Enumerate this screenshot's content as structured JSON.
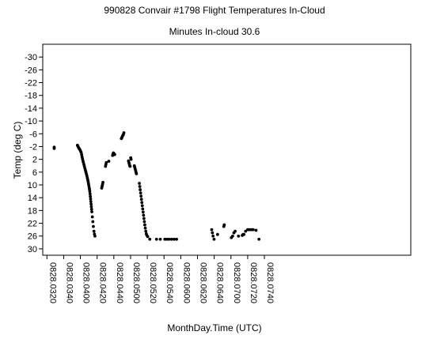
{
  "chart_data": {
    "type": "scatter",
    "title": "990828 Convair #1798 Flight Temperatures In-Cloud",
    "subtitle": "Minutes In-cloud 30.6",
    "xlabel": "MonthDay.Time (UTC)",
    "ylabel": "Temp (deg C)",
    "xlim": [
      315,
      755
    ],
    "ylim": [
      32,
      -34
    ],
    "y_reversed": true,
    "grid": false,
    "legend": "none",
    "marker_color": "#000000",
    "x_ticks": [
      {
        "value": 320,
        "label": "0828.0320"
      },
      {
        "value": 340,
        "label": "0828.0340"
      },
      {
        "value": 360,
        "label": "0828.0400"
      },
      {
        "value": 380,
        "label": "0828.0420"
      },
      {
        "value": 400,
        "label": "0828.0440"
      },
      {
        "value": 420,
        "label": "0828.0500"
      },
      {
        "value": 440,
        "label": "0828.0520"
      },
      {
        "value": 460,
        "label": "0828.0540"
      },
      {
        "value": 480,
        "label": "0828.0600"
      },
      {
        "value": 500,
        "label": "0828.0620"
      },
      {
        "value": 520,
        "label": "0828.0640"
      },
      {
        "value": 540,
        "label": "0828.0700"
      },
      {
        "value": 560,
        "label": "0828.0720"
      },
      {
        "value": 580,
        "label": "0828.0740"
      }
    ],
    "y_ticks": [
      {
        "value": -30,
        "label": "-30"
      },
      {
        "value": -26,
        "label": "-26"
      },
      {
        "value": -22,
        "label": "-22"
      },
      {
        "value": -18,
        "label": "-18"
      },
      {
        "value": -14,
        "label": "-14"
      },
      {
        "value": -10,
        "label": "-10"
      },
      {
        "value": -6,
        "label": "-6"
      },
      {
        "value": -2,
        "label": "-2"
      },
      {
        "value": 2,
        "label": "2"
      },
      {
        "value": 6,
        "label": "6"
      },
      {
        "value": 10,
        "label": "10"
      },
      {
        "value": 14,
        "label": "14"
      },
      {
        "value": 18,
        "label": "18"
      },
      {
        "value": 22,
        "label": "22"
      },
      {
        "value": 26,
        "label": "26"
      },
      {
        "value": 30,
        "label": "30"
      }
    ],
    "x_minutes_note_free": true,
    "points": [
      [
        328.7,
        -1.8
      ],
      [
        328.7,
        -1.4
      ],
      [
        356.5,
        -2.4
      ],
      [
        357.2,
        -2.0
      ],
      [
        358.0,
        -1.6
      ],
      [
        358.7,
        -1.3
      ],
      [
        359.5,
        -1.0
      ],
      [
        360.2,
        -0.6
      ],
      [
        360.9,
        -0.2
      ],
      [
        361.5,
        0.5
      ],
      [
        362.0,
        1.2
      ],
      [
        362.5,
        1.8
      ],
      [
        363.0,
        2.4
      ],
      [
        363.6,
        3.0
      ],
      [
        364.2,
        3.6
      ],
      [
        364.8,
        4.2
      ],
      [
        365.4,
        4.8
      ],
      [
        366.0,
        5.4
      ],
      [
        366.6,
        6.0
      ],
      [
        367.2,
        6.6
      ],
      [
        367.8,
        7.2
      ],
      [
        368.3,
        7.8
      ],
      [
        368.8,
        8.4
      ],
      [
        369.3,
        9.0
      ],
      [
        369.7,
        9.6
      ],
      [
        370.1,
        10.2
      ],
      [
        370.5,
        10.8
      ],
      [
        370.9,
        11.4
      ],
      [
        371.2,
        12.0
      ],
      [
        371.6,
        12.8
      ],
      [
        371.9,
        13.6
      ],
      [
        372.2,
        14.4
      ],
      [
        372.5,
        15.2
      ],
      [
        372.8,
        16.0
      ],
      [
        373.1,
        16.8
      ],
      [
        373.4,
        17.6
      ],
      [
        373.7,
        18.4
      ],
      [
        374.3,
        20.0
      ],
      [
        374.9,
        21.5
      ],
      [
        375.5,
        23.0
      ],
      [
        376.2,
        24.5
      ],
      [
        376.8,
        25.4
      ],
      [
        377.4,
        26.0
      ],
      [
        385.5,
        11.0
      ],
      [
        386.0,
        10.4
      ],
      [
        386.5,
        9.8
      ],
      [
        387.0,
        9.2
      ],
      [
        390.0,
        4.2
      ],
      [
        390.5,
        3.6
      ],
      [
        391.0,
        3.0
      ],
      [
        394.0,
        2.6
      ],
      [
        398.5,
        0.8
      ],
      [
        399.0,
        0.3
      ],
      [
        399.5,
        0.0
      ],
      [
        400.0,
        0.2
      ],
      [
        400.5,
        0.4
      ],
      [
        401.0,
        0.5
      ],
      [
        409.0,
        -4.5
      ],
      [
        409.6,
        -4.8
      ],
      [
        410.2,
        -5.2
      ],
      [
        410.8,
        -5.5
      ],
      [
        411.4,
        -5.8
      ],
      [
        412.0,
        -6.3
      ],
      [
        417.5,
        2.5
      ],
      [
        418.0,
        3.0
      ],
      [
        418.5,
        3.5
      ],
      [
        419.0,
        4.0
      ],
      [
        419.5,
        4.2
      ],
      [
        420.2,
        1.5
      ],
      [
        420.6,
        2.0
      ],
      [
        424.5,
        4.0
      ],
      [
        425.0,
        4.5
      ],
      [
        425.5,
        5.0
      ],
      [
        426.0,
        5.5
      ],
      [
        426.5,
        6.0
      ],
      [
        427.0,
        6.5
      ],
      [
        430.5,
        9.5
      ],
      [
        431.0,
        10.5
      ],
      [
        431.5,
        11.5
      ],
      [
        432.0,
        12.5
      ],
      [
        432.5,
        13.5
      ],
      [
        433.0,
        14.5
      ],
      [
        433.5,
        15.5
      ],
      [
        434.0,
        16.5
      ],
      [
        434.5,
        17.5
      ],
      [
        435.0,
        18.5
      ],
      [
        435.5,
        19.5
      ],
      [
        436.0,
        20.5
      ],
      [
        436.5,
        21.5
      ],
      [
        437.0,
        22.5
      ],
      [
        437.6,
        23.5
      ],
      [
        438.2,
        24.5
      ],
      [
        438.8,
        25.3
      ],
      [
        439.5,
        25.8
      ],
      [
        440.5,
        26.2
      ],
      [
        443.0,
        27.0
      ],
      [
        451.0,
        27.0
      ],
      [
        455.5,
        27.0
      ],
      [
        461.0,
        27.0
      ],
      [
        463.5,
        27.0
      ],
      [
        466.0,
        27.0
      ],
      [
        469.0,
        27.0
      ],
      [
        472.0,
        27.0
      ],
      [
        475.0,
        27.0
      ],
      [
        517.0,
        24.0
      ],
      [
        517.8,
        25.0
      ],
      [
        518.6,
        26.0
      ],
      [
        519.8,
        27.0
      ],
      [
        524.0,
        25.5
      ],
      [
        531.5,
        23.0
      ],
      [
        532.0,
        22.5
      ],
      [
        540.5,
        26.5
      ],
      [
        542.0,
        26.0
      ],
      [
        543.5,
        25.0
      ],
      [
        545.0,
        24.5
      ],
      [
        549.0,
        26.0
      ],
      [
        553.5,
        25.8
      ],
      [
        554.5,
        25.5
      ],
      [
        555.5,
        25.5
      ],
      [
        557.5,
        24.5
      ],
      [
        560.0,
        24.0
      ],
      [
        561.5,
        24.0
      ],
      [
        563.5,
        24.0
      ],
      [
        565.5,
        24.0
      ],
      [
        566.5,
        24.0
      ],
      [
        570.0,
        24.2
      ],
      [
        573.5,
        27.0
      ]
    ]
  }
}
